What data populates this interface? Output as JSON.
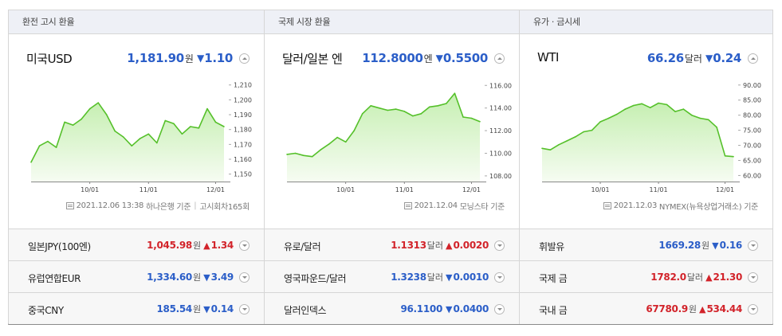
{
  "columns": [
    {
      "header": "환전 고시 환율",
      "summary": {
        "name": "미국USD",
        "price": "1,181.90",
        "unit": "원",
        "direction": "down",
        "tri": "▼",
        "change": "1.10"
      },
      "source": {
        "date": "2021.12.06 13:38",
        "provider": "하나은행 기준",
        "extra": "고시회차165회"
      },
      "rows": [
        {
          "name": "일본JPY(100엔)",
          "price": "1,045.98",
          "unit": "원",
          "direction": "up",
          "tri": "▲",
          "change": "1.34"
        },
        {
          "name": "유럽연합EUR",
          "price": "1,334.60",
          "unit": "원",
          "direction": "down",
          "tri": "▼",
          "change": "3.49"
        },
        {
          "name": "중국CNY",
          "price": "185.54",
          "unit": "원",
          "direction": "down",
          "tri": "▼",
          "change": "0.14"
        }
      ]
    },
    {
      "header": "국제 시장 환율",
      "summary": {
        "name": "달러/일본 엔",
        "price": "112.8000",
        "unit": "엔",
        "direction": "down",
        "tri": "▼",
        "change": "0.5500"
      },
      "source": {
        "date": "2021.12.04",
        "provider": "모닝스타 기준",
        "extra": ""
      },
      "rows": [
        {
          "name": "유로/달러",
          "price": "1.1313",
          "unit": "달러",
          "direction": "up",
          "tri": "▲",
          "change": "0.0020"
        },
        {
          "name": "영국파운드/달러",
          "price": "1.3238",
          "unit": "달러",
          "direction": "down",
          "tri": "▼",
          "change": "0.0010"
        },
        {
          "name": "달러인덱스",
          "price": "96.1100",
          "unit": "",
          "direction": "down",
          "tri": "▼",
          "change": "0.0400"
        }
      ]
    },
    {
      "header": "유가 · 금시세",
      "summary": {
        "name": "WTI",
        "price": "66.26",
        "unit": "달러",
        "direction": "down",
        "tri": "▼",
        "change": "0.24"
      },
      "source": {
        "date": "2021.12.03",
        "provider": "NYMEX(뉴욕상업거래소) 기준",
        "extra": ""
      },
      "rows": [
        {
          "name": "휘발유",
          "price": "1669.28",
          "unit": "원",
          "direction": "down",
          "tri": "▼",
          "change": "0.16"
        },
        {
          "name": "국제 금",
          "price": "1782.0",
          "unit": "달러",
          "direction": "up",
          "tri": "▲",
          "change": "21.30"
        },
        {
          "name": "국내 금",
          "price": "67780.9",
          "unit": "원",
          "direction": "up",
          "tri": "▲",
          "change": "534.44"
        }
      ]
    }
  ],
  "colors": {
    "up": "#d2232a",
    "down": "#2b5ec8",
    "line": "#55c02a",
    "fill_top": "#c6efb2",
    "fill_bottom": "#f6fcf2"
  },
  "chart_data": [
    {
      "type": "area",
      "xticks": [
        "10/01",
        "11/01",
        "12/01"
      ],
      "yticks": [
        "1,210",
        "1,200",
        "1,190",
        "1,180",
        "1,170",
        "1,160",
        "1,150"
      ],
      "ylim": [
        1145,
        1212
      ],
      "x": [
        "09/06",
        "09/10",
        "09/14",
        "09/18",
        "09/22",
        "09/26",
        "09/30",
        "10/04",
        "10/08",
        "10/12",
        "10/16",
        "10/20",
        "10/24",
        "10/28",
        "11/01",
        "11/05",
        "11/09",
        "11/13",
        "11/17",
        "11/21",
        "11/25",
        "11/29",
        "12/03",
        "12/06"
      ],
      "values": [
        1158,
        1169,
        1172,
        1168,
        1185,
        1183,
        1187,
        1194,
        1198,
        1190,
        1179,
        1175,
        1169,
        1174,
        1177,
        1171,
        1186,
        1184,
        1177,
        1182,
        1181,
        1194,
        1185,
        1182
      ]
    },
    {
      "type": "area",
      "xticks": [
        "10/01",
        "11/01",
        "12/01"
      ],
      "yticks": [
        "116.00",
        "114.00",
        "112.00",
        "110.00",
        "108.00"
      ],
      "ylim": [
        107.5,
        116.3
      ],
      "x": [
        "09/06",
        "09/10",
        "09/14",
        "09/18",
        "09/22",
        "09/26",
        "09/30",
        "10/04",
        "10/08",
        "10/12",
        "10/16",
        "10/20",
        "10/24",
        "10/28",
        "11/01",
        "11/05",
        "11/09",
        "11/13",
        "11/17",
        "11/21",
        "11/25",
        "11/29",
        "12/03",
        "12/06"
      ],
      "values": [
        109.9,
        110.0,
        109.8,
        109.7,
        110.3,
        110.8,
        111.4,
        111.0,
        112.0,
        113.5,
        114.2,
        114.0,
        113.8,
        113.9,
        113.7,
        113.3,
        113.5,
        114.1,
        114.2,
        114.4,
        115.3,
        113.2,
        113.1,
        112.8
      ]
    },
    {
      "type": "area",
      "xticks": [
        "10/01",
        "11/01",
        "12/01"
      ],
      "yticks": [
        "90.00",
        "85.00",
        "80.00",
        "75.00",
        "70.00",
        "65.00",
        "60.00"
      ],
      "ylim": [
        58,
        91
      ],
      "x": [
        "09/06",
        "09/10",
        "09/14",
        "09/18",
        "09/22",
        "09/26",
        "09/30",
        "10/04",
        "10/08",
        "10/12",
        "10/16",
        "10/20",
        "10/24",
        "10/28",
        "11/01",
        "11/05",
        "11/09",
        "11/13",
        "11/17",
        "11/21",
        "11/25",
        "11/29",
        "12/03",
        "12/06"
      ],
      "values": [
        69.0,
        68.5,
        70.2,
        71.5,
        72.8,
        74.5,
        75.0,
        77.8,
        79.0,
        80.3,
        82.0,
        83.2,
        83.8,
        82.5,
        84.0,
        83.5,
        81.2,
        82.0,
        80.0,
        79.0,
        78.5,
        76.0,
        66.5,
        66.26
      ]
    }
  ]
}
